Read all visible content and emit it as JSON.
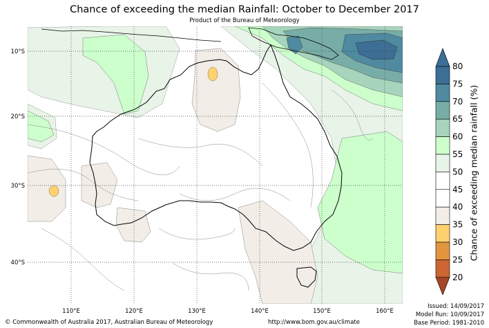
{
  "header": {
    "title": "Chance of exceeding the median Rainfall: October to December 2017",
    "subtitle": "Product of the Bureau of Meteorology"
  },
  "map": {
    "lat_labels": [
      "10°S",
      "20°S",
      "30°S",
      "40°S"
    ],
    "lon_labels": [
      "110°E",
      "120°E",
      "130°E",
      "140°E",
      "150°E",
      "160°E"
    ],
    "region": "Australia"
  },
  "legend": {
    "title": "Chance of exceeding median rainfall (%)",
    "ticks": [
      "80",
      "75",
      "70",
      "65",
      "60",
      "55",
      "50",
      "45",
      "40",
      "35",
      "30",
      "25",
      "20"
    ],
    "colors": {
      "above_75": "#3d6e95",
      "70_75": "#4f8aa0",
      "65_70": "#78ada7",
      "60_65": "#a7d4bc",
      "55_60": "#ccffcc",
      "50_55": "#e8f4e8",
      "45_50": "#ffffff",
      "40_45": "#ffffff",
      "35_40": "#f2ede7",
      "30_35": "#fdd16e",
      "25_30": "#e1953f",
      "20_25": "#cc6633",
      "below_20": "#a34624"
    }
  },
  "footer": {
    "copyright": "© Commonwealth of Australia 2017, Australian Bureau of Meteorology",
    "url": "http://www.bom.gov.au/climate",
    "issued": "Issued: 14/09/2017",
    "model_run": "Model Run: 10/09/2017",
    "base_period": "Base Period: 1981-2010"
  }
}
